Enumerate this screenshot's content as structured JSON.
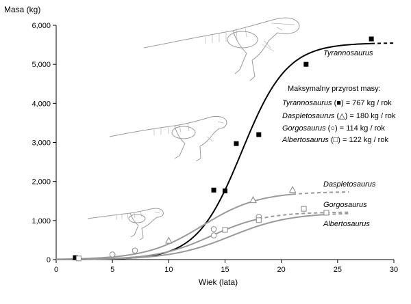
{
  "chart_data": {
    "type": "scatter",
    "xlabel": "Wiek (lata)",
    "ylabel": "Masa (kg)",
    "xlim": [
      0,
      30
    ],
    "ylim": [
      0,
      6000
    ],
    "x_ticks": [
      0,
      5,
      10,
      15,
      20,
      25,
      30
    ],
    "y_ticks": [
      0,
      1000,
      2000,
      3000,
      4000,
      5000,
      6000
    ],
    "x_tick_labels": [
      "0",
      "5",
      "10",
      "15",
      "20",
      "25",
      "30"
    ],
    "y_tick_labels": [
      "0",
      "1,000",
      "2,000",
      "3,000",
      "4,000",
      "5,000",
      "6,000"
    ],
    "grid": false,
    "series": [
      {
        "name": "Tyrannosaurus",
        "marker": "filled-square",
        "color": "#000000",
        "points": [
          [
            1.7,
            50
          ],
          [
            14,
            1780
          ],
          [
            15,
            1760
          ],
          [
            16,
            2970
          ],
          [
            18,
            3200
          ],
          [
            22.2,
            5000
          ],
          [
            28,
            5650
          ]
        ],
        "curve": {
          "type": "logistic",
          "max": 5550,
          "k": 0.5,
          "t0": 16.5,
          "solid_to": 28,
          "dashed_to": 30
        }
      },
      {
        "name": "Daspletosaurus",
        "marker": "open-triangle",
        "color": "#999999",
        "points": [
          [
            10,
            480
          ],
          [
            17.5,
            1520
          ],
          [
            21,
            1780
          ]
        ],
        "curve": {
          "type": "logistic",
          "max": 1740,
          "k": 0.4,
          "t0": 13.0,
          "solid_to": 21,
          "dashed_to": 26
        }
      },
      {
        "name": "Gorgosaurus",
        "marker": "open-circle",
        "color": "#999999",
        "points": [
          [
            5,
            130
          ],
          [
            7,
            230
          ],
          [
            14,
            780
          ],
          [
            14,
            620
          ],
          [
            18,
            1100
          ]
        ],
        "curve": {
          "type": "logistic",
          "max": 1220,
          "k": 0.42,
          "t0": 13.8,
          "solid_to": 18,
          "dashed_to": 26
        }
      },
      {
        "name": "Albertosaurus",
        "marker": "open-square",
        "color": "#999999",
        "points": [
          [
            2,
            30
          ],
          [
            15,
            760
          ],
          [
            18,
            1010
          ],
          [
            22,
            1300
          ],
          [
            24,
            1200
          ]
        ],
        "curve": {
          "type": "logistic",
          "max": 1200,
          "k": 0.38,
          "t0": 15.5,
          "solid_to": 24,
          "dashed_to": 26
        }
      }
    ],
    "annotation": {
      "title": "Maksymalny przyrost masy:",
      "lines": [
        {
          "species": "Tyrannosaurus",
          "symbol": "■",
          "value": "= 767 kg / rok"
        },
        {
          "species": "Daspletosaurus",
          "symbol": "△",
          "value": "= 180 kg / rok"
        },
        {
          "species": "Gorgosaurus",
          "symbol": "○",
          "value": "= 114 kg / rok"
        },
        {
          "species": "Albertosaurus",
          "symbol": "□",
          "value": "= 122 kg / rok"
        }
      ]
    }
  }
}
